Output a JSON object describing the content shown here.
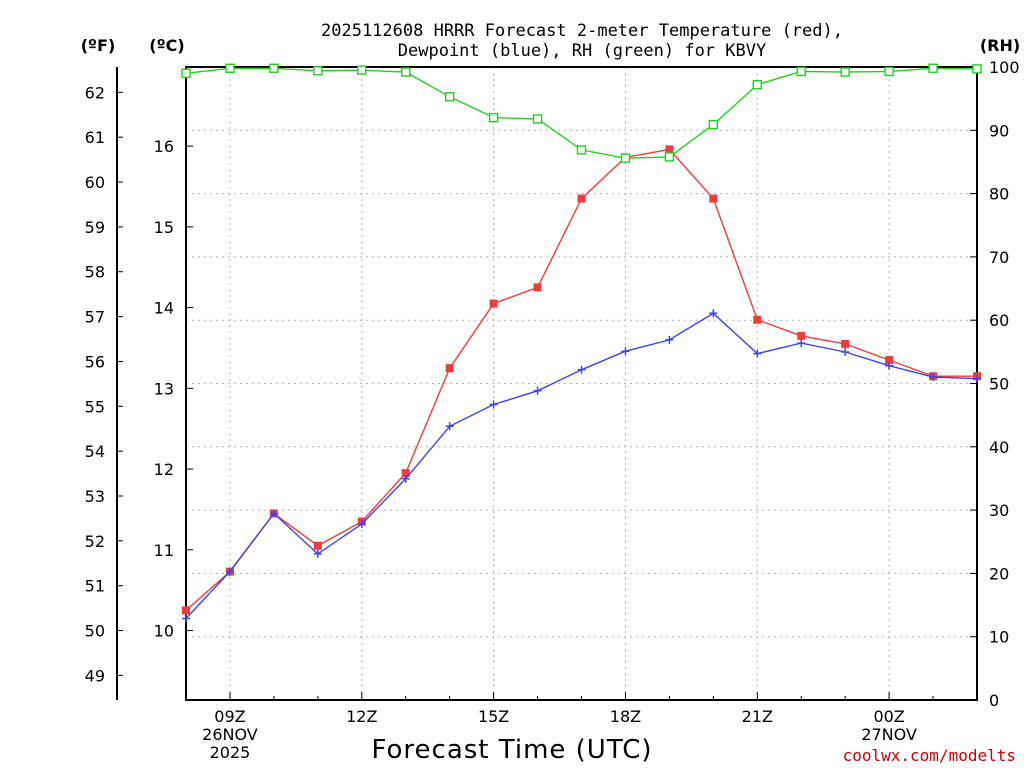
{
  "chart_data": {
    "type": "line",
    "title_lines": [
      "2025112608 HRRR Forecast 2-meter Temperature (red),",
      "Dewpoint (blue), RH (green) for KBVY"
    ],
    "xlabel": "Forecast Time (UTC)",
    "credit": "coolwx.com/modelts",
    "x_hours": [
      8,
      9,
      10,
      11,
      12,
      13,
      14,
      15,
      16,
      17,
      18,
      19,
      20,
      21,
      22,
      23,
      24,
      25,
      26
    ],
    "xlim": [
      8,
      26
    ],
    "x_ticks": [
      {
        "hour": 9,
        "lines": [
          "09Z",
          "26NOV",
          "2025"
        ]
      },
      {
        "hour": 12,
        "lines": [
          "12Z"
        ]
      },
      {
        "hour": 15,
        "lines": [
          "15Z"
        ]
      },
      {
        "hour": 18,
        "lines": [
          "18Z"
        ]
      },
      {
        "hour": 21,
        "lines": [
          "21Z"
        ]
      },
      {
        "hour": 24,
        "lines": [
          "00Z",
          "27NOV"
        ]
      }
    ],
    "axes": {
      "fahrenheit": {
        "unit_label": "(ºF)",
        "ticks": [
          49,
          50,
          51,
          52,
          53,
          54,
          55,
          56,
          57,
          58,
          59,
          60,
          61,
          62
        ]
      },
      "celsius": {
        "unit_label": "(ºC)",
        "ylim": [
          9.14,
          16.98
        ],
        "ticks": [
          10,
          11,
          12,
          13,
          14,
          15,
          16
        ]
      },
      "rh": {
        "unit_label": "(RH)",
        "ylim": [
          0,
          100
        ],
        "ticks": [
          0,
          10,
          20,
          30,
          40,
          50,
          60,
          70,
          80,
          90,
          100
        ]
      }
    },
    "grid": true,
    "series": [
      {
        "name": "Temperature",
        "axis": "celsius",
        "color": "#f03c3c",
        "marker": "filled-square",
        "values": [
          10.25,
          10.73,
          11.45,
          11.05,
          11.35,
          11.95,
          13.25,
          14.05,
          14.25,
          15.35,
          15.86,
          15.96,
          15.35,
          13.85,
          13.65,
          13.55,
          13.35,
          13.15,
          13.15
        ]
      },
      {
        "name": "Dewpoint",
        "axis": "celsius",
        "color": "#3c46e6",
        "marker": "plus",
        "values": [
          10.15,
          10.73,
          11.45,
          10.95,
          11.32,
          11.88,
          12.53,
          12.8,
          12.97,
          13.23,
          13.46,
          13.6,
          13.93,
          13.43,
          13.56,
          13.45,
          13.28,
          13.14,
          13.12
        ]
      },
      {
        "name": "RH",
        "axis": "rh",
        "color": "#1ed21e",
        "marker": "open-square",
        "values": [
          99.0,
          99.8,
          99.8,
          99.4,
          99.5,
          99.2,
          95.3,
          92.0,
          91.8,
          86.9,
          85.6,
          85.8,
          90.9,
          97.2,
          99.3,
          99.2,
          99.3,
          99.8,
          99.7
        ]
      }
    ]
  }
}
